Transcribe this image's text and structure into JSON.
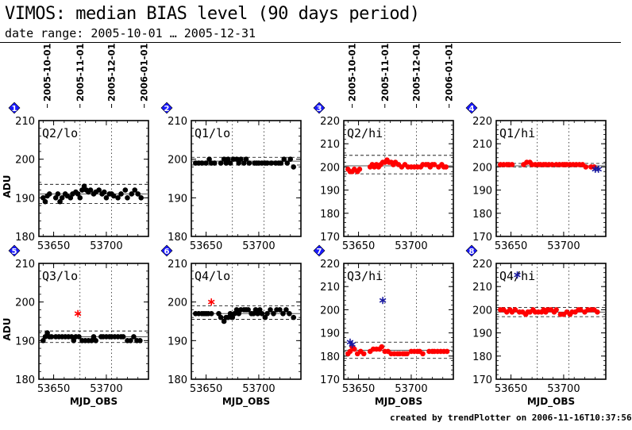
{
  "header": {
    "title": "VIMOS: median BIAS level (90 days period)",
    "subtitle": "date range: 2005-10-01 … 2005-12-31"
  },
  "footer": {
    "credit": "created by trendPlotter on  2006-11-16T10:37:56"
  },
  "colors": {
    "lo_points": "#000000",
    "hi_points": "#ff0000",
    "outlier_star": "#cc0000",
    "blue_star": "#1a1aa0",
    "badge": "#1a1aff"
  },
  "chart_data": [
    {
      "type": "scatter",
      "badge": "1",
      "label": "Q2/lo",
      "ylabel": "ADU",
      "xlabel": "",
      "xlim": [
        53636,
        53740
      ],
      "ylim": [
        180,
        210
      ],
      "yticks": [
        180,
        190,
        200,
        210
      ],
      "xticks": [
        53650,
        53700
      ],
      "date_ticks": [
        "2005-10-01",
        "2005-11-01",
        "2005-12-01",
        "2006-01-01"
      ],
      "date_mjd": [
        53644,
        53675,
        53705,
        53736
      ],
      "median": 191,
      "band": [
        188.5,
        193.5
      ],
      "color": "black",
      "points": [
        [
          53640,
          190
        ],
        [
          53642,
          189
        ],
        [
          53644,
          190.5
        ],
        [
          53646,
          191
        ],
        [
          53652,
          190
        ],
        [
          53654,
          191
        ],
        [
          53656,
          189
        ],
        [
          53658,
          190
        ],
        [
          53661,
          191
        ],
        [
          53663,
          190.5
        ],
        [
          53666,
          190
        ],
        [
          53668,
          191
        ],
        [
          53671,
          191.5
        ],
        [
          53673,
          191
        ],
        [
          53675,
          190
        ],
        [
          53677,
          192
        ],
        [
          53679,
          193
        ],
        [
          53681,
          192
        ],
        [
          53683,
          191.5
        ],
        [
          53685,
          192
        ],
        [
          53688,
          191
        ],
        [
          53690,
          191.5
        ],
        [
          53693,
          192
        ],
        [
          53696,
          191
        ],
        [
          53698,
          191.5
        ],
        [
          53700,
          190
        ],
        [
          53703,
          191
        ],
        [
          53705,
          191
        ],
        [
          53707,
          190.5
        ],
        [
          53711,
          190
        ],
        [
          53714,
          191
        ],
        [
          53718,
          192
        ],
        [
          53720,
          190
        ],
        [
          53724,
          191
        ],
        [
          53727,
          192
        ],
        [
          53730,
          191
        ],
        [
          53733,
          190
        ]
      ],
      "outliers": []
    },
    {
      "type": "scatter",
      "badge": "2",
      "label": "Q1/lo",
      "ylabel": "",
      "xlabel": "",
      "xlim": [
        53636,
        53740
      ],
      "ylim": [
        180,
        210
      ],
      "yticks": [
        180,
        190,
        200,
        210
      ],
      "xticks": [
        53650,
        53700
      ],
      "median": 199.5,
      "band": [
        198.5,
        200.5
      ],
      "color": "black",
      "points": [
        [
          53640,
          199
        ],
        [
          53643,
          199
        ],
        [
          53646,
          199
        ],
        [
          53650,
          199
        ],
        [
          53653,
          200
        ],
        [
          53655,
          199
        ],
        [
          53658,
          199
        ],
        [
          53664,
          199
        ],
        [
          53667,
          200
        ],
        [
          53669,
          199
        ],
        [
          53671,
          200
        ],
        [
          53673,
          199
        ],
        [
          53676,
          200
        ],
        [
          53679,
          200
        ],
        [
          53681,
          199
        ],
        [
          53683,
          200
        ],
        [
          53686,
          199
        ],
        [
          53688,
          200
        ],
        [
          53691,
          199
        ],
        [
          53696,
          199
        ],
        [
          53698,
          199
        ],
        [
          53700,
          199
        ],
        [
          53703,
          199
        ],
        [
          53706,
          199
        ],
        [
          53708,
          199
        ],
        [
          53712,
          199
        ],
        [
          53716,
          199
        ],
        [
          53719,
          199
        ],
        [
          53721,
          199
        ],
        [
          53724,
          200
        ],
        [
          53727,
          199
        ],
        [
          53730,
          200
        ],
        [
          53733,
          198
        ]
      ],
      "outliers": []
    },
    {
      "type": "scatter",
      "badge": "3",
      "label": "Q2/hi",
      "ylabel": "",
      "xlabel": "",
      "xlim": [
        53636,
        53740
      ],
      "ylim": [
        170,
        220
      ],
      "yticks": [
        170,
        180,
        190,
        200,
        210,
        220
      ],
      "xticks": [
        53650,
        53700
      ],
      "date_ticks": [
        "2005-10-01",
        "2005-11-01",
        "2005-12-01",
        "2006-01-01"
      ],
      "date_mjd": [
        53644,
        53675,
        53705,
        53736
      ],
      "median": 200.5,
      "band": [
        197,
        205
      ],
      "color": "red",
      "points": [
        [
          53640,
          199
        ],
        [
          53642,
          198
        ],
        [
          53644,
          198
        ],
        [
          53646,
          199
        ],
        [
          53649,
          198
        ],
        [
          53651,
          199
        ],
        [
          53661,
          200
        ],
        [
          53663,
          201
        ],
        [
          53665,
          200
        ],
        [
          53667,
          201
        ],
        [
          53669,
          200
        ],
        [
          53671,
          201
        ],
        [
          53673,
          202
        ],
        [
          53675,
          202
        ],
        [
          53677,
          203
        ],
        [
          53679,
          202
        ],
        [
          53681,
          202
        ],
        [
          53683,
          201
        ],
        [
          53685,
          202
        ],
        [
          53688,
          201
        ],
        [
          53691,
          200
        ],
        [
          53694,
          201
        ],
        [
          53697,
          200
        ],
        [
          53700,
          200
        ],
        [
          53703,
          200
        ],
        [
          53706,
          200
        ],
        [
          53709,
          200
        ],
        [
          53711,
          201
        ],
        [
          53714,
          201
        ],
        [
          53716,
          201
        ],
        [
          53718,
          200
        ],
        [
          53720,
          201
        ],
        [
          53722,
          201
        ],
        [
          53726,
          200
        ],
        [
          53729,
          201
        ],
        [
          53731,
          200
        ],
        [
          53733,
          200
        ]
      ],
      "outliers": []
    },
    {
      "type": "scatter",
      "badge": "4",
      "label": "Q1/hi",
      "ylabel": "",
      "xlabel": "",
      "xlim": [
        53636,
        53740
      ],
      "ylim": [
        170,
        220
      ],
      "yticks": [
        170,
        180,
        190,
        200,
        210,
        220
      ],
      "xticks": [
        53650,
        53700
      ],
      "median": 200.5,
      "band": [
        200,
        201.5
      ],
      "color": "red",
      "points": [
        [
          53640,
          201
        ],
        [
          53643,
          201
        ],
        [
          53646,
          201
        ],
        [
          53648,
          201
        ],
        [
          53651,
          201
        ],
        [
          53662,
          201
        ],
        [
          53665,
          202
        ],
        [
          53668,
          202
        ],
        [
          53670,
          201
        ],
        [
          53673,
          201
        ],
        [
          53676,
          201
        ],
        [
          53678,
          201
        ],
        [
          53681,
          201
        ],
        [
          53683,
          201
        ],
        [
          53686,
          201
        ],
        [
          53689,
          201
        ],
        [
          53693,
          201
        ],
        [
          53696,
          201
        ],
        [
          53699,
          201
        ],
        [
          53701,
          201
        ],
        [
          53703,
          201
        ],
        [
          53706,
          201
        ],
        [
          53709,
          201
        ],
        [
          53712,
          201
        ],
        [
          53715,
          201
        ],
        [
          53718,
          201
        ],
        [
          53721,
          200
        ],
        [
          53726,
          200
        ],
        [
          53729,
          200
        ]
      ],
      "outliers": [
        {
          "x": 53730,
          "y": 199,
          "color": "blue"
        },
        {
          "x": 53733,
          "y": 199,
          "color": "blue"
        }
      ]
    },
    {
      "type": "scatter",
      "badge": "5",
      "label": "Q3/lo",
      "ylabel": "ADU",
      "xlabel": "MJD_OBS",
      "xlim": [
        53636,
        53740
      ],
      "ylim": [
        180,
        210
      ],
      "yticks": [
        180,
        190,
        200,
        210
      ],
      "xticks": [
        53650,
        53700
      ],
      "median": 191,
      "band": [
        189.5,
        192.5
      ],
      "color": "black",
      "points": [
        [
          53640,
          190
        ],
        [
          53642,
          191
        ],
        [
          53644,
          192
        ],
        [
          53646,
          191
        ],
        [
          53648,
          191
        ],
        [
          53652,
          191
        ],
        [
          53655,
          191
        ],
        [
          53658,
          191
        ],
        [
          53661,
          191
        ],
        [
          53664,
          191
        ],
        [
          53667,
          191
        ],
        [
          53669,
          190
        ],
        [
          53671,
          191
        ],
        [
          53674,
          191
        ],
        [
          53677,
          190
        ],
        [
          53680,
          190
        ],
        [
          53683,
          190
        ],
        [
          53686,
          190
        ],
        [
          53688,
          191
        ],
        [
          53690,
          190
        ],
        [
          53695,
          191
        ],
        [
          53697,
          191
        ],
        [
          53700,
          191
        ],
        [
          53703,
          191
        ],
        [
          53705,
          191
        ],
        [
          53708,
          191
        ],
        [
          53711,
          191
        ],
        [
          53714,
          191
        ],
        [
          53716,
          191
        ],
        [
          53720,
          190
        ],
        [
          53723,
          190
        ],
        [
          53726,
          191
        ],
        [
          53729,
          190
        ],
        [
          53732,
          190
        ]
      ],
      "outliers": [
        {
          "x": 53673,
          "y": 197,
          "color": "red"
        }
      ]
    },
    {
      "type": "scatter",
      "badge": "6",
      "label": "Q4/lo",
      "ylabel": "",
      "xlabel": "MJD_OBS",
      "xlim": [
        53636,
        53740
      ],
      "ylim": [
        180,
        210
      ],
      "yticks": [
        180,
        190,
        200,
        210
      ],
      "xticks": [
        53650,
        53700
      ],
      "median": 197,
      "band": [
        195.5,
        199
      ],
      "color": "black",
      "points": [
        [
          53640,
          197
        ],
        [
          53643,
          197
        ],
        [
          53646,
          197
        ],
        [
          53648,
          197
        ],
        [
          53650,
          197
        ],
        [
          53652,
          197
        ],
        [
          53655,
          197
        ],
        [
          53662,
          197
        ],
        [
          53664,
          196
        ],
        [
          53667,
          195
        ],
        [
          53669,
          196
        ],
        [
          53671,
          196
        ],
        [
          53673,
          197
        ],
        [
          53675,
          196
        ],
        [
          53677,
          197
        ],
        [
          53679,
          198
        ],
        [
          53681,
          197
        ],
        [
          53683,
          198
        ],
        [
          53686,
          198
        ],
        [
          53688,
          198
        ],
        [
          53690,
          198
        ],
        [
          53693,
          197
        ],
        [
          53695,
          197
        ],
        [
          53697,
          198
        ],
        [
          53699,
          197
        ],
        [
          53701,
          198
        ],
        [
          53703,
          197
        ],
        [
          53706,
          196
        ],
        [
          53708,
          197
        ],
        [
          53711,
          198
        ],
        [
          53714,
          197
        ],
        [
          53717,
          198
        ],
        [
          53720,
          198
        ],
        [
          53723,
          197
        ],
        [
          53726,
          198
        ],
        [
          53729,
          197
        ],
        [
          53733,
          196
        ]
      ],
      "outliers": [
        {
          "x": 53655,
          "y": 200,
          "color": "red"
        }
      ]
    },
    {
      "type": "scatter",
      "badge": "7",
      "label": "Q3/hi",
      "ylabel": "",
      "xlabel": "MJD_OBS",
      "xlim": [
        53636,
        53740
      ],
      "ylim": [
        170,
        220
      ],
      "yticks": [
        170,
        180,
        190,
        200,
        210,
        220
      ],
      "xticks": [
        53650,
        53700
      ],
      "median": 182.5,
      "band": [
        179,
        186
      ],
      "color": "red",
      "points": [
        [
          53640,
          181
        ],
        [
          53642,
          182
        ],
        [
          53644,
          184
        ],
        [
          53646,
          183
        ],
        [
          53649,
          181
        ],
        [
          53652,
          182
        ],
        [
          53655,
          181
        ],
        [
          53661,
          182
        ],
        [
          53664,
          183
        ],
        [
          53667,
          183
        ],
        [
          53670,
          183
        ],
        [
          53672,
          184
        ],
        [
          53675,
          182
        ],
        [
          53678,
          182
        ],
        [
          53681,
          181
        ],
        [
          53684,
          181
        ],
        [
          53687,
          181
        ],
        [
          53689,
          181
        ],
        [
          53692,
          181
        ],
        [
          53694,
          181
        ],
        [
          53696,
          181
        ],
        [
          53700,
          182
        ],
        [
          53703,
          182
        ],
        [
          53706,
          182
        ],
        [
          53708,
          182
        ],
        [
          53711,
          181
        ],
        [
          53717,
          182
        ],
        [
          53720,
          182
        ],
        [
          53722,
          182
        ],
        [
          53725,
          182
        ],
        [
          53728,
          182
        ],
        [
          53731,
          182
        ],
        [
          53734,
          182
        ]
      ],
      "outliers": [
        {
          "x": 53642,
          "y": 186,
          "color": "blue"
        },
        {
          "x": 53644,
          "y": 185,
          "color": "blue"
        },
        {
          "x": 53673,
          "y": 204,
          "color": "blue"
        }
      ]
    },
    {
      "type": "scatter",
      "badge": "8",
      "label": "Q4/hi",
      "ylabel": "",
      "xlabel": "MJD_OBS",
      "xlim": [
        53636,
        53740
      ],
      "ylim": [
        170,
        220
      ],
      "yticks": [
        170,
        180,
        190,
        200,
        210,
        220
      ],
      "xticks": [
        53650,
        53700
      ],
      "median": 199,
      "band": [
        197,
        201
      ],
      "color": "red",
      "points": [
        [
          53640,
          200
        ],
        [
          53643,
          200
        ],
        [
          53646,
          199
        ],
        [
          53649,
          200
        ],
        [
          53651,
          199
        ],
        [
          53654,
          200
        ],
        [
          53658,
          199
        ],
        [
          53661,
          199
        ],
        [
          53664,
          198
        ],
        [
          53666,
          199
        ],
        [
          53668,
          199
        ],
        [
          53671,
          200
        ],
        [
          53673,
          199
        ],
        [
          53676,
          199
        ],
        [
          53679,
          199
        ],
        [
          53681,
          200
        ],
        [
          53683,
          199
        ],
        [
          53685,
          200
        ],
        [
          53688,
          200
        ],
        [
          53691,
          199
        ],
        [
          53693,
          200
        ],
        [
          53697,
          198
        ],
        [
          53700,
          198
        ],
        [
          53703,
          199
        ],
        [
          53706,
          198
        ],
        [
          53708,
          199
        ],
        [
          53711,
          199
        ],
        [
          53714,
          200
        ],
        [
          53716,
          200
        ],
        [
          53720,
          199
        ],
        [
          53723,
          200
        ],
        [
          53726,
          200
        ],
        [
          53729,
          200
        ],
        [
          53732,
          199
        ]
      ],
      "outliers": [
        {
          "x": 53656,
          "y": 215,
          "color": "blue"
        }
      ]
    }
  ]
}
